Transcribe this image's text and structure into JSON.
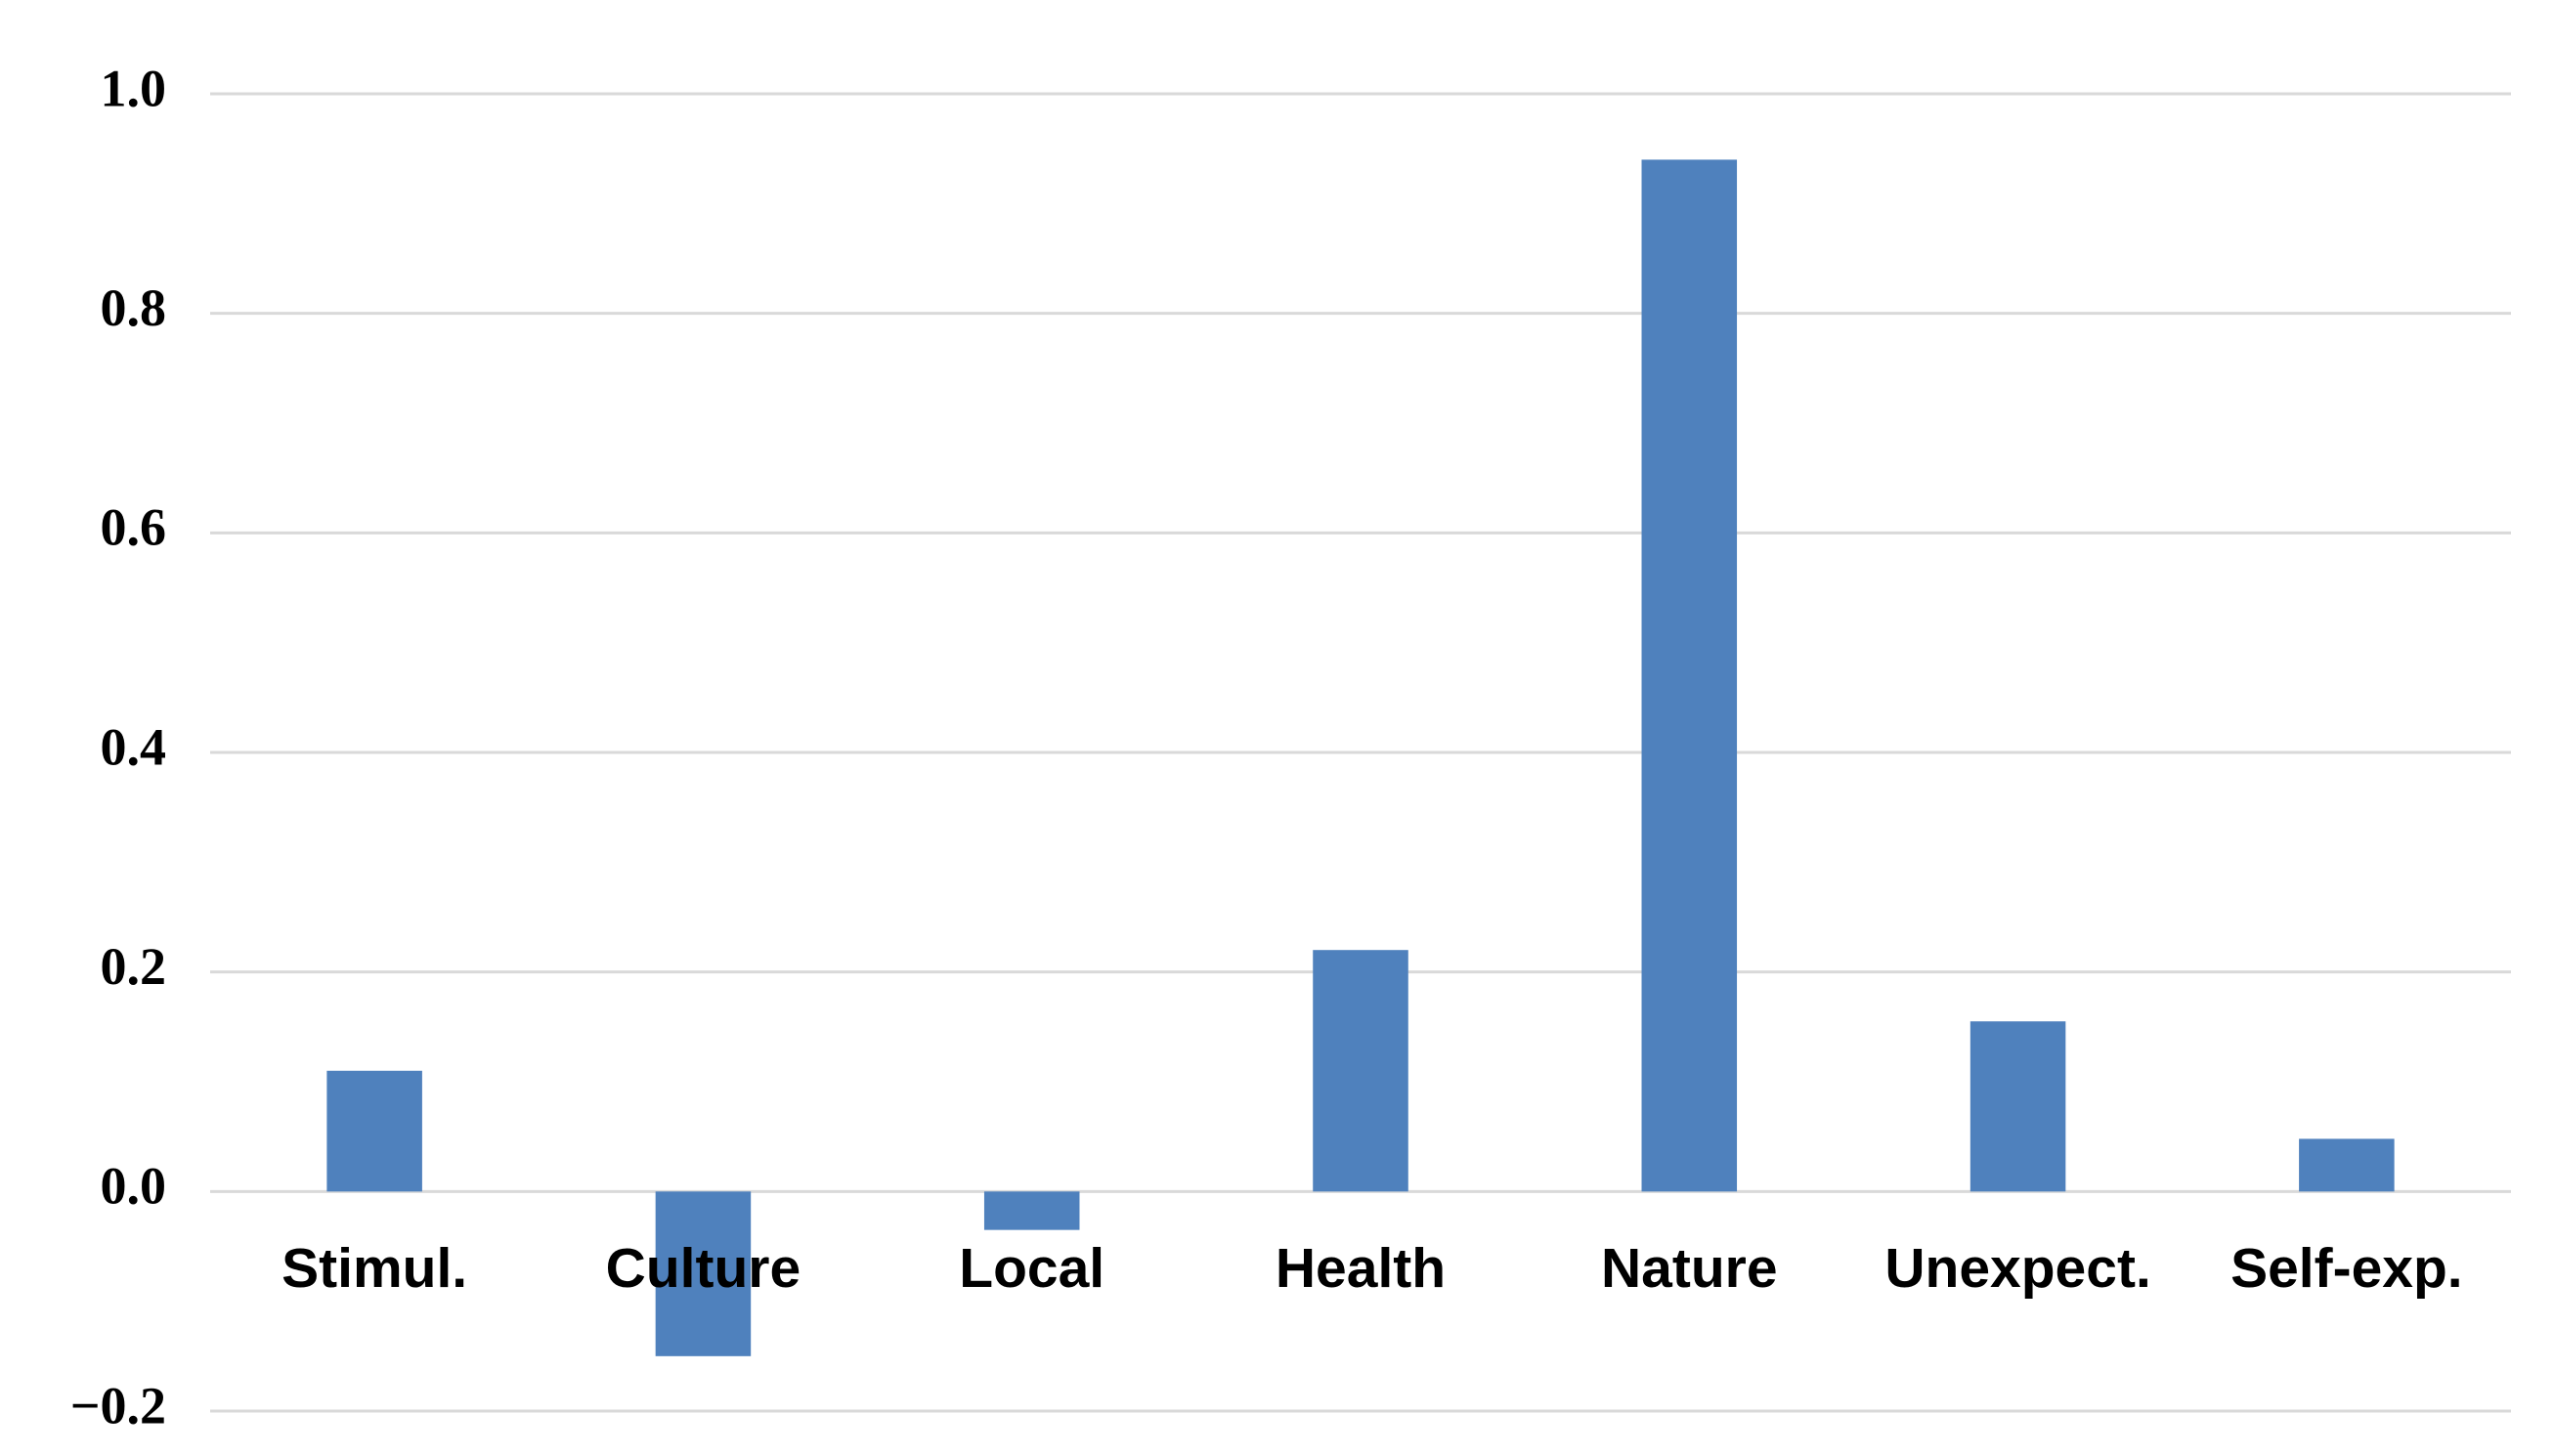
{
  "chart_data": {
    "type": "bar",
    "categories": [
      "Stimul.",
      "Culture",
      "Local",
      "Health",
      "Nature",
      "Unexpect.",
      "Self-exp."
    ],
    "values": [
      0.11,
      -0.15,
      -0.035,
      0.22,
      0.94,
      0.155,
      0.048
    ],
    "color": "#4f81bd",
    "ylim": [
      -0.2,
      1.0
    ],
    "yticks": [
      {
        "value": -0.2,
        "label": "−0.2"
      },
      {
        "value": 0,
        "label": "0.0"
      },
      0.2,
      0.4,
      0.6,
      0.8,
      {
        "value": 1.0,
        "label": "1.0"
      }
    ],
    "grid": true
  }
}
